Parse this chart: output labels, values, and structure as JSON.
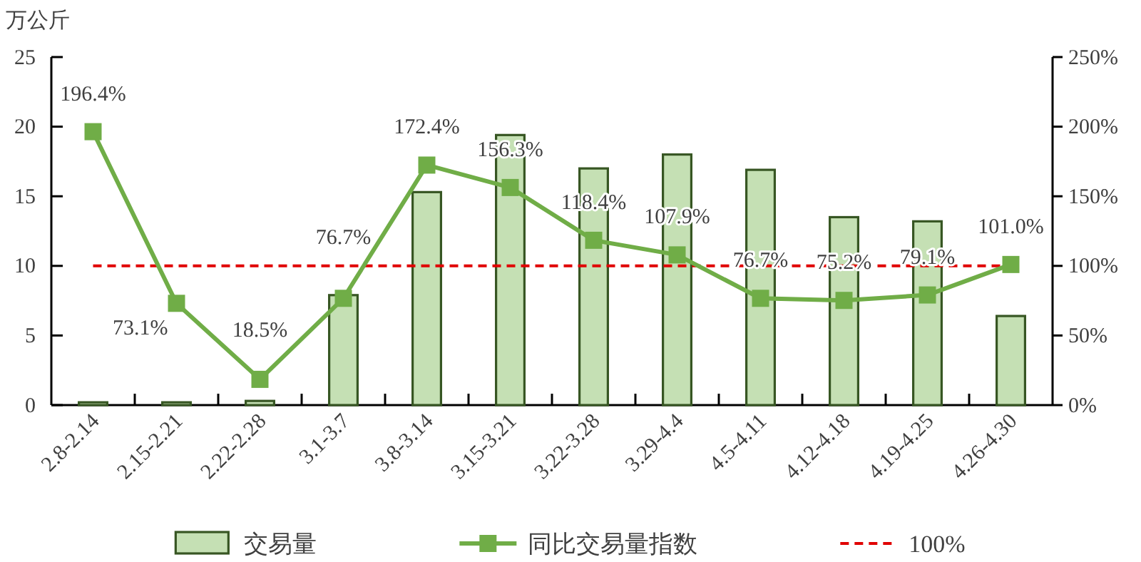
{
  "chart_data": {
    "type": "bar",
    "ylabel": "万公斤",
    "categories": [
      "2.8-2.14",
      "2.15-2.21",
      "2.22-2.28",
      "3.1-3.7",
      "3.8-3.14",
      "3.15-3.21",
      "3.22-3.28",
      "3.29-4.4",
      "4.5-4.11",
      "4.12-4.18",
      "4.19-4.25",
      "4.26-4.30"
    ],
    "series": [
      {
        "name": "交易量",
        "color": "#c5e0b4",
        "values": [
          0.2,
          0.2,
          0.3,
          7.9,
          15.3,
          19.4,
          17.0,
          18.0,
          16.9,
          13.5,
          13.2,
          6.4
        ]
      },
      {
        "name": "同比交易量指数",
        "type": "line",
        "axis": "y2",
        "color": "#70ad47",
        "values": [
          196.4,
          73.1,
          18.5,
          76.7,
          172.4,
          156.3,
          118.4,
          107.9,
          76.7,
          75.2,
          79.1,
          101.0
        ],
        "value_labels": [
          "196.4%",
          "73.1%",
          "18.5%",
          "76.7%",
          "172.4%",
          "156.3%",
          "118.4%",
          "107.9%",
          "76.7%",
          "75.2%",
          "79.1%",
          "101.0%"
        ]
      }
    ],
    "ylim": [
      0,
      25
    ],
    "yticks": [
      0,
      5,
      10,
      15,
      20,
      25
    ],
    "y2lim": [
      0,
      250
    ],
    "y2ticks": [
      {
        "value": 0,
        "label": "0%"
      },
      {
        "value": 50,
        "label": "50%"
      },
      {
        "value": 100,
        "label": "100%"
      },
      {
        "value": 150,
        "label": "150%"
      },
      {
        "value": 200,
        "label": "200%"
      },
      {
        "value": 250,
        "label": "250%"
      }
    ],
    "ref_lines": [
      {
        "axis": "y2",
        "value": 100,
        "label": "100%",
        "color": "#e00000",
        "line_style": "dashed"
      }
    ],
    "marker": "square",
    "line_style": "solid",
    "legend": "bottom"
  }
}
